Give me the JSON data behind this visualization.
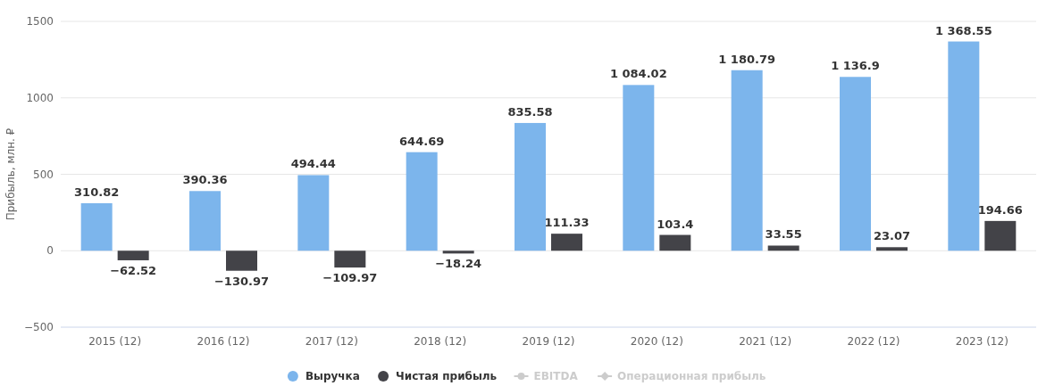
{
  "chart_data": {
    "type": "bar",
    "ylabel": "Прибыль, млн. ₽",
    "categories": [
      "2015 (12)",
      "2016 (12)",
      "2017 (12)",
      "2018 (12)",
      "2019 (12)",
      "2020 (12)",
      "2021 (12)",
      "2022 (12)",
      "2023 (12)"
    ],
    "series": [
      {
        "name": "Выручка",
        "color": "#7cb5ec",
        "values": [
          310.82,
          390.36,
          494.44,
          644.69,
          835.58,
          1084.02,
          1180.79,
          1136.9,
          1368.55
        ],
        "value_labels": [
          "310.82",
          "390.36",
          "494.44",
          "644.69",
          "835.58",
          "1 084.02",
          "1 180.79",
          "1 136.9",
          "1 368.55"
        ]
      },
      {
        "name": "Чистая прибыль",
        "color": "#434348",
        "values": [
          -62.52,
          -130.97,
          -109.97,
          -18.24,
          111.33,
          103.4,
          33.55,
          23.07,
          194.66
        ],
        "value_labels": [
          "−62.52",
          "−130.97",
          "−109.97",
          "−18.24",
          "111.33",
          "103.4",
          "33.55",
          "23.07",
          "194.66"
        ]
      },
      {
        "name": "EBITDA",
        "type": "line",
        "marker": "circle",
        "color": "#cccccc",
        "values": [
          null,
          null,
          null,
          null,
          null,
          null,
          null,
          null,
          null
        ]
      },
      {
        "name": "Операционная прибыль",
        "type": "line",
        "marker": "diamond",
        "color": "#cccccc",
        "values": [
          null,
          null,
          null,
          null,
          null,
          null,
          null,
          null,
          null
        ]
      }
    ],
    "ylim": [
      -500,
      1500
    ],
    "yticks": [
      {
        "value": -500,
        "label": "−500"
      },
      0,
      500,
      1000,
      1500
    ],
    "grid": "y",
    "legend": "bottom"
  }
}
